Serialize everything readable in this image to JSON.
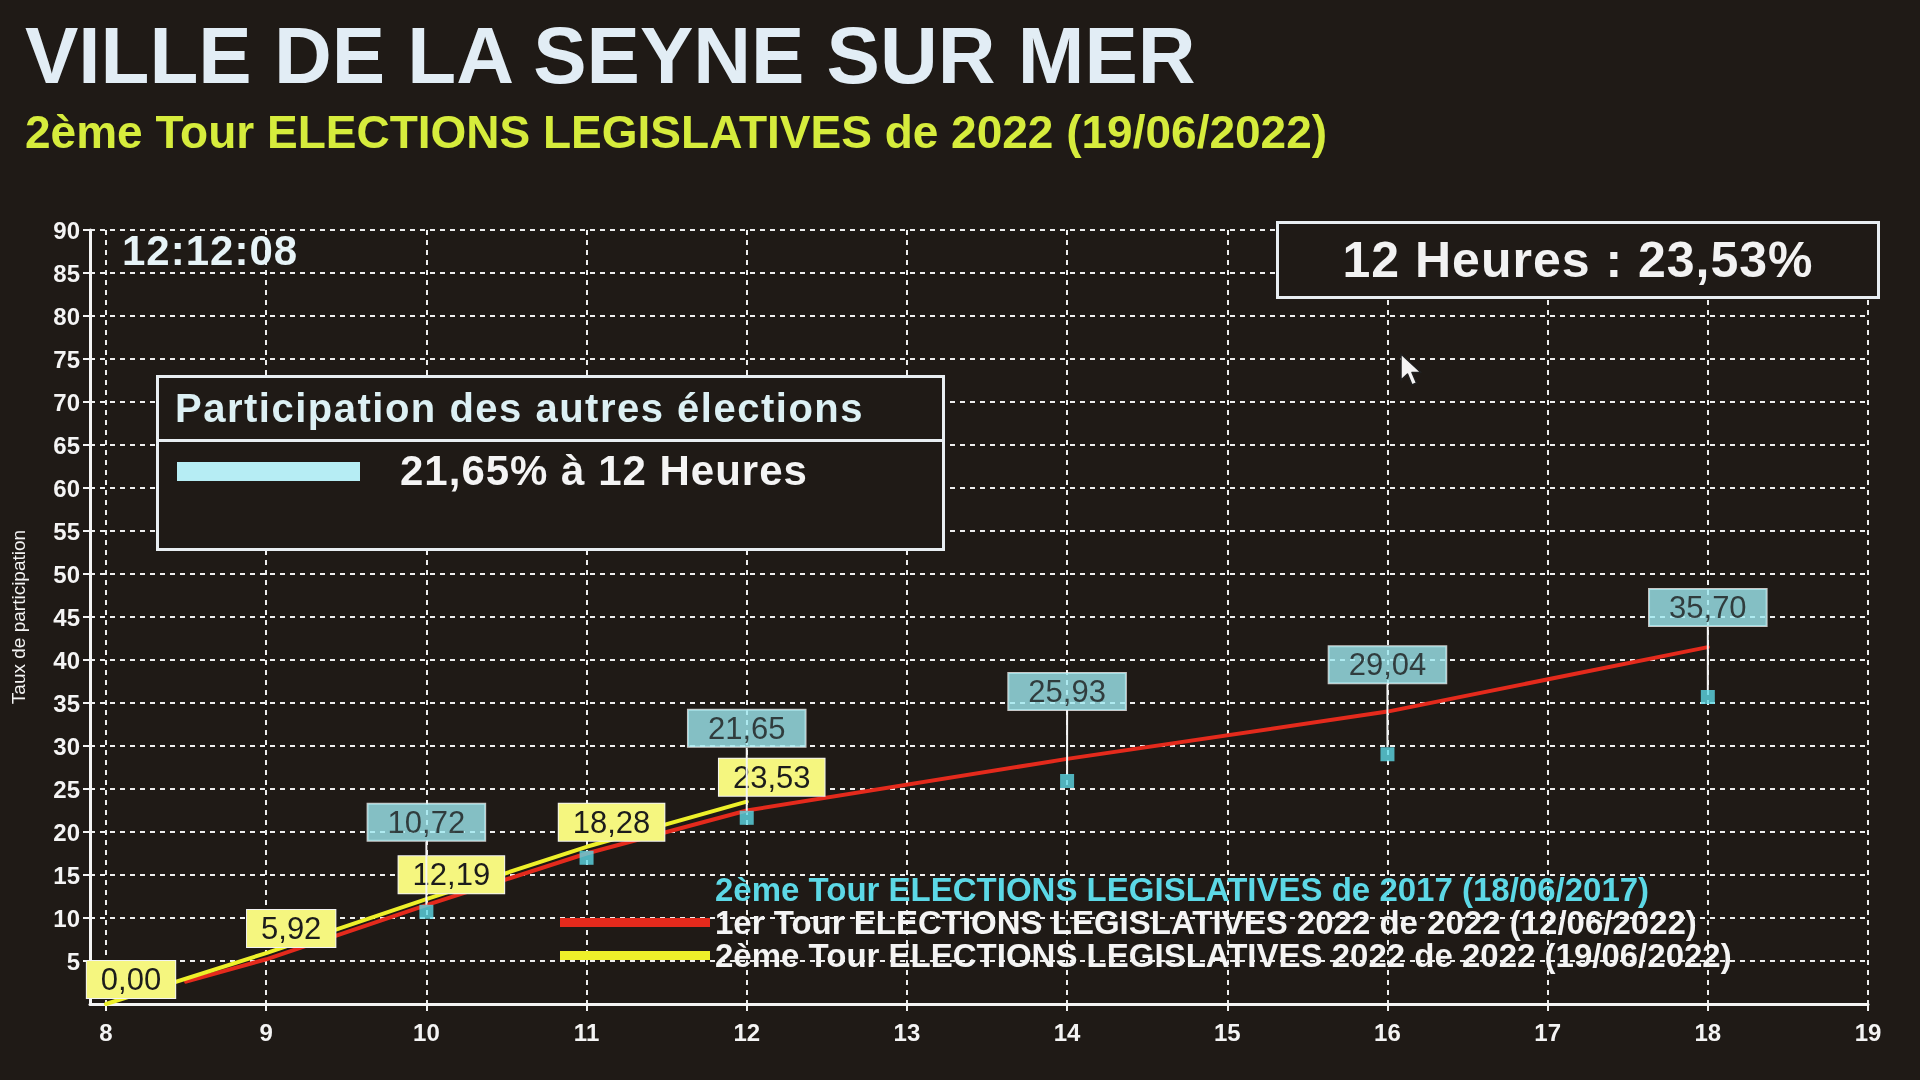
{
  "chart_data": {
    "type": "line",
    "title": "VILLE DE LA SEYNE SUR MER",
    "subtitle": "2ème Tour ELECTIONS LEGISLATIVES de 2022 (19/06/2022)",
    "ylabel": "Taux de participation",
    "annotations": [
      "12:12:08",
      "12 Heures : 23,53%",
      "Participation des autres élections",
      "21,65% à 12 Heures"
    ],
    "series": [
      {
        "name": "2ème Tour ELECTIONS LEGISLATIVES de 2017 (18/06/2017)",
        "type": "scatter",
        "marker": "square",
        "color": "#5cd8e6",
        "x": [
          10,
          11,
          12,
          14,
          16,
          18
        ],
        "values": [
          10.72,
          17,
          21.65,
          25.93,
          29.04,
          35.7
        ],
        "value_labels": [
          "10,72",
          null,
          "21,65",
          "25,93",
          "29,04",
          "35,70"
        ]
      },
      {
        "name": "1er Tour ELECTIONS LEGISLATIVES 2022 de 2022 (12/06/2022)",
        "color": "#e42a1c",
        "x": [
          8.5,
          9,
          10,
          11,
          12,
          14,
          16,
          18
        ],
        "values": [
          2.6,
          5.2,
          11.5,
          17.5,
          22.5,
          28.5,
          34,
          41.5
        ]
      },
      {
        "name": "2ème Tour ELECTIONS LEGISLATIVES 2022 de 2022 (19/06/2022)",
        "color": "#eef02a",
        "x": [
          8,
          9,
          10,
          11,
          12
        ],
        "values": [
          0,
          5.92,
          12.19,
          18.28,
          23.53
        ],
        "value_labels": [
          "0,00",
          "5,92",
          "12,19",
          "18,28",
          "23,53"
        ]
      }
    ],
    "xlim": [
      7.9,
      19
    ],
    "xticks": [
      8,
      9,
      10,
      11,
      12,
      13,
      14,
      15,
      16,
      17,
      18,
      19
    ],
    "ylim": [
      0,
      90
    ],
    "yticks": [
      5,
      10,
      15,
      20,
      25,
      30,
      35,
      40,
      45,
      50,
      55,
      60,
      65,
      70,
      75,
      80,
      85,
      90
    ],
    "grid": true,
    "legend": "bottom right",
    "marker": "none",
    "line_style": "solid"
  }
}
